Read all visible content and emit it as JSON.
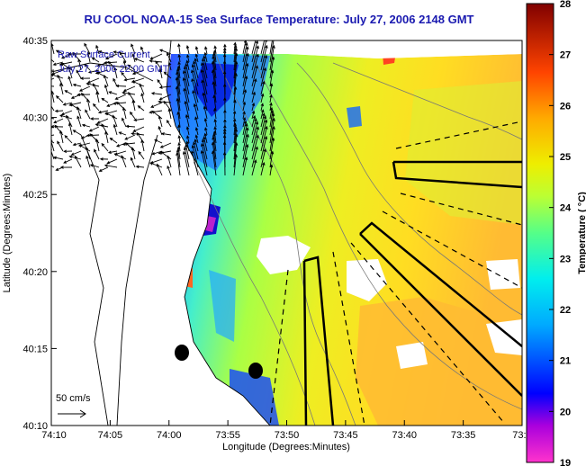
{
  "title": "RU COOL  NOAA-15  Sea Surface Temperature:  July 27, 2006 2148 GMT",
  "overlay": {
    "line1": "Raw Surface Current",
    "line2": "July 27, 2006 22:00 GMT"
  },
  "scale_label": "50 cm/s",
  "x_axis": {
    "label": "Longitude (Degrees:Minutes)",
    "ticks": [
      "74:10",
      "74:05",
      "74:00",
      "73:55",
      "73:50",
      "73:45",
      "73:40",
      "73:35",
      "73:3"
    ]
  },
  "y_axis": {
    "label": "Latitude (Degrees:Minutes)",
    "ticks": [
      "40:35",
      "40:30",
      "40:25",
      "40:20",
      "40:15",
      "40:10"
    ]
  },
  "colorbar": {
    "label": "Temperature ( °C)",
    "ticks": [
      "28",
      "27",
      "26",
      "25",
      "24",
      "23",
      "22",
      "21",
      "20",
      "19"
    ],
    "stops": [
      "#ff33cc",
      "#8800cc",
      "#0000ff",
      "#00aaff",
      "#00eeee",
      "#66ff66",
      "#eeee00",
      "#ffaa00",
      "#ff3300",
      "#800000"
    ]
  },
  "colors": {
    "title": "#1a1ab0",
    "land": "#ffffff",
    "outline": "#000000"
  }
}
